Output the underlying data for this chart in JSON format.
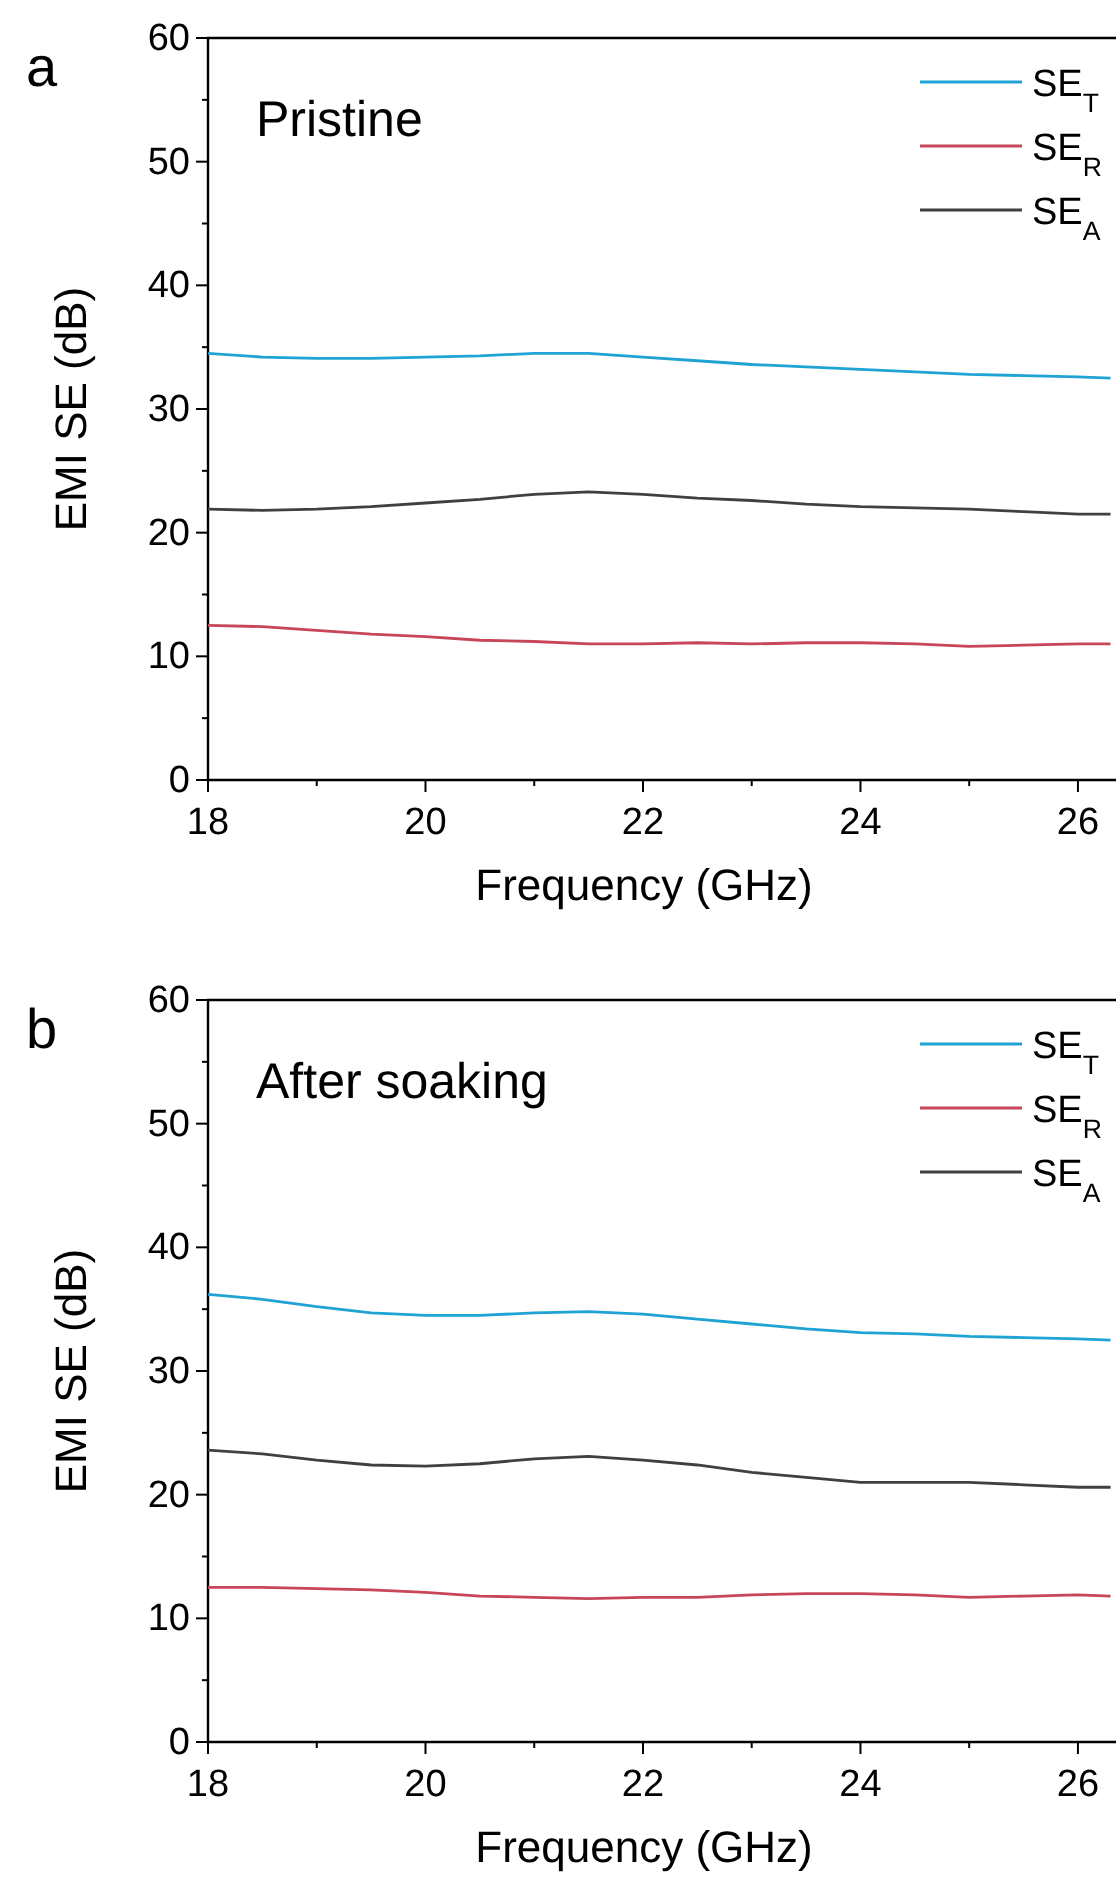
{
  "chart_data": [
    {
      "type": "line",
      "title": "a",
      "annotations": [
        "Pristine"
      ],
      "xlabel": "Frequency (GHz)",
      "ylabel": "EMI SE (dB)",
      "x": [
        18,
        18.5,
        19,
        19.5,
        20,
        20.5,
        21,
        21.5,
        22,
        22.5,
        23,
        23.5,
        24,
        24.5,
        25,
        25.5,
        26,
        26.3
      ],
      "series": [
        {
          "name": "SE$_{T}$",
          "color": "#1fa3d4",
          "values": [
            34.5,
            34.2,
            34.1,
            34.1,
            34.2,
            34.3,
            34.5,
            34.5,
            34.2,
            33.9,
            33.6,
            33.4,
            33.2,
            33.0,
            32.8,
            32.7,
            32.6,
            32.5
          ]
        },
        {
          "name": "SE$_{R}$",
          "color": "#c8465a",
          "values": [
            12.5,
            12.4,
            12.1,
            11.8,
            11.6,
            11.3,
            11.2,
            11.0,
            11.0,
            11.1,
            11.0,
            11.1,
            11.1,
            11.0,
            10.8,
            10.9,
            11.0,
            11.0
          ]
        },
        {
          "name": "SE$_{A}$",
          "color": "#404040",
          "values": [
            21.9,
            21.8,
            21.9,
            22.1,
            22.4,
            22.7,
            23.1,
            23.3,
            23.1,
            22.8,
            22.6,
            22.3,
            22.1,
            22.0,
            21.9,
            21.7,
            21.5,
            21.5
          ]
        }
      ],
      "xlim": [
        18,
        26.35
      ],
      "xticks": [
        18,
        {
          "value": 19,
          "label": null
        },
        20,
        {
          "value": 21,
          "label": null
        },
        22,
        {
          "value": 23,
          "label": null
        },
        24,
        {
          "value": 25,
          "label": null
        },
        26
      ],
      "ylim": [
        0,
        60
      ],
      "yticks": [
        0,
        {
          "value": 5,
          "label": null
        },
        10,
        {
          "value": 15,
          "label": null
        },
        20,
        {
          "value": 25,
          "label": null
        },
        30,
        {
          "value": 35,
          "label": null
        },
        40,
        {
          "value": 45,
          "label": null
        },
        50,
        {
          "value": 55,
          "label": null
        },
        60
      ],
      "legend": "top right",
      "grid": false,
      "marker": "none",
      "line_style": "solid"
    },
    {
      "type": "line",
      "title": "b",
      "annotations": [
        "After soaking"
      ],
      "xlabel": "Frequency (GHz)",
      "ylabel": "EMI SE (dB)",
      "x": [
        18,
        18.5,
        19,
        19.5,
        20,
        20.5,
        21,
        21.5,
        22,
        22.5,
        23,
        23.5,
        24,
        24.5,
        25,
        25.5,
        26,
        26.3
      ],
      "series": [
        {
          "name": "SE$_{T}$",
          "color": "#1fa3d4",
          "values": [
            36.2,
            35.8,
            35.2,
            34.7,
            34.5,
            34.5,
            34.7,
            34.8,
            34.6,
            34.2,
            33.8,
            33.4,
            33.1,
            33.0,
            32.8,
            32.7,
            32.6,
            32.5
          ]
        },
        {
          "name": "SE$_{R}$",
          "color": "#c8465a",
          "values": [
            12.5,
            12.5,
            12.4,
            12.3,
            12.1,
            11.8,
            11.7,
            11.6,
            11.7,
            11.7,
            11.9,
            12.0,
            12.0,
            11.9,
            11.7,
            11.8,
            11.9,
            11.8
          ]
        },
        {
          "name": "SE$_{A}$",
          "color": "#404040",
          "values": [
            23.6,
            23.3,
            22.8,
            22.4,
            22.3,
            22.5,
            22.9,
            23.1,
            22.8,
            22.4,
            21.8,
            21.4,
            21.0,
            21.0,
            21.0,
            20.8,
            20.6,
            20.6
          ]
        }
      ],
      "xlim": [
        18,
        26.35
      ],
      "xticks": [
        18,
        {
          "value": 19,
          "label": null
        },
        20,
        {
          "value": 21,
          "label": null
        },
        22,
        {
          "value": 23,
          "label": null
        },
        24,
        {
          "value": 25,
          "label": null
        },
        26
      ],
      "ylim": [
        0,
        60
      ],
      "yticks": [
        0,
        {
          "value": 5,
          "label": null
        },
        10,
        {
          "value": 15,
          "label": null
        },
        20,
        {
          "value": 25,
          "label": null
        },
        30,
        {
          "value": 35,
          "label": null
        },
        40,
        {
          "value": 45,
          "label": null
        },
        50,
        {
          "value": 55,
          "label": null
        },
        60
      ],
      "legend": "top right",
      "grid": false,
      "marker": "none",
      "line_style": "solid"
    }
  ]
}
